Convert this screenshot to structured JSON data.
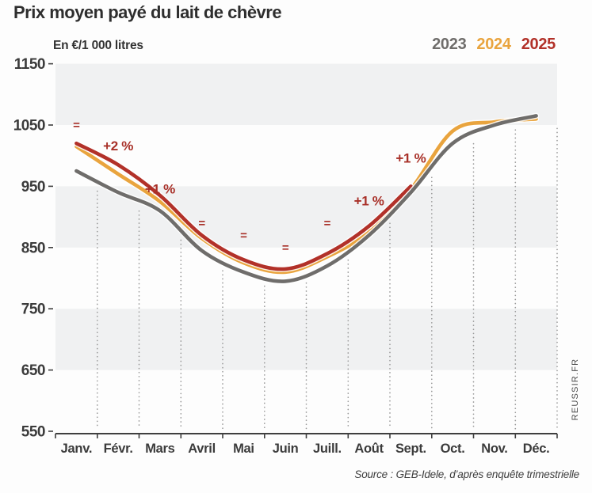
{
  "header": {
    "title": "Prix moyen payé du lait de chèvre",
    "unit_label": "En €/1 000 litres"
  },
  "legend": [
    {
      "label": "2023",
      "color": "#6f6d6b"
    },
    {
      "label": "2024",
      "color": "#e9a43e"
    },
    {
      "label": "2025",
      "color": "#b23129"
    }
  ],
  "footer": {
    "source": "Source : GEB-Idele, d’après enquête trimestrielle",
    "watermark": "REUSSIR.FR"
  },
  "theme": {
    "band": "#f0f1f2",
    "grid_dots": "#9b9b9b",
    "axis": "#3f3f3f",
    "annotation": "#a83028",
    "halo": "#ffffff"
  },
  "chart_data": {
    "type": "line",
    "title": "Prix moyen payé du lait de chèvre",
    "ylabel": "En €/1 000 litres",
    "categories": [
      "Janv.",
      "Févr.",
      "Mars",
      "Avril",
      "Mai",
      "Juin",
      "Juill.",
      "Août",
      "Sept.",
      "Oct.",
      "Nov.",
      "Déc."
    ],
    "series": [
      {
        "name": "2023",
        "color": "#6f6d6b",
        "values": [
          975,
          940,
          910,
          845,
          810,
          795,
          820,
          870,
          940,
          1020,
          1050,
          1065
        ]
      },
      {
        "name": "2024",
        "color": "#e9a43e",
        "values": [
          1015,
          970,
          925,
          865,
          825,
          810,
          835,
          875,
          945,
          1040,
          1055,
          1060
        ]
      },
      {
        "name": "2025",
        "color": "#b23129",
        "values": [
          1020,
          985,
          935,
          870,
          830,
          815,
          840,
          885,
          950
        ]
      }
    ],
    "annotations": [
      {
        "month_index": 0,
        "text": "=",
        "value": 1050
      },
      {
        "month_index": 1,
        "text": "+2 %",
        "value": 1015
      },
      {
        "month_index": 2,
        "text": "+1 %",
        "value": 945
      },
      {
        "month_index": 3,
        "text": "=",
        "value": 890
      },
      {
        "month_index": 4,
        "text": "=",
        "value": 870
      },
      {
        "month_index": 5,
        "text": "=",
        "value": 850
      },
      {
        "month_index": 6,
        "text": "=",
        "value": 890
      },
      {
        "month_index": 7,
        "text": "+1 %",
        "value": 925
      },
      {
        "month_index": 8,
        "text": "+1 %",
        "value": 995
      }
    ],
    "y_ticks": [
      1150,
      1050,
      950,
      850,
      750,
      650,
      550
    ],
    "ylim": [
      550,
      1150
    ],
    "bands": [
      [
        1050,
        1150
      ],
      [
        850,
        950
      ],
      [
        650,
        750
      ]
    ],
    "grid": "dotted-vertical",
    "legend_position": "top-right"
  }
}
